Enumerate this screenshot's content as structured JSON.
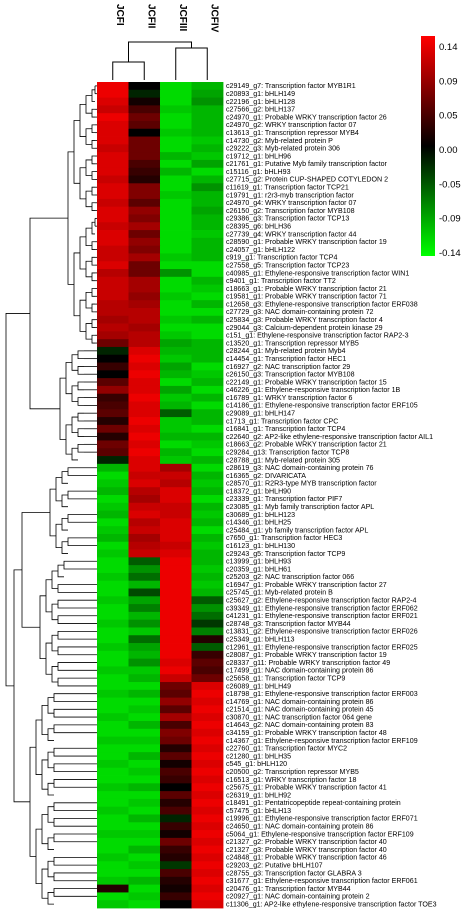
{
  "chart_data": {
    "type": "heatmap",
    "columns": [
      "JCFI",
      "JCFII",
      "JCFIII",
      "JCFIV"
    ],
    "color_scale": {
      "ticks": [
        0.14,
        0.09,
        0.05,
        0.0,
        -0.05,
        -0.09,
        -0.14
      ],
      "tick_labels": [
        "0.14",
        "0.09",
        "0.05",
        "0.00",
        "-0.05",
        "-0.09",
        "-0.14"
      ],
      "min": -0.14,
      "max": 0.14,
      "high_color": "#ff0000",
      "mid_color": "#000000",
      "low_color": "#00ff00"
    },
    "rows": [
      {
        "label": "c29149_g7: Transcription factor MYB1R1",
        "values": [
          0.13,
          0.0,
          -0.12,
          -0.1
        ]
      },
      {
        "label": "c20893_g1: bHLH149",
        "values": [
          0.13,
          -0.02,
          -0.12,
          -0.09
        ]
      },
      {
        "label": "c22196_g1: bHLH128",
        "values": [
          0.12,
          0.01,
          -0.12,
          -0.08
        ]
      },
      {
        "label": "c27566_g2: bHLH137",
        "values": [
          0.11,
          0.04,
          -0.11,
          -0.1
        ]
      },
      {
        "label": "c24970_g1: Probable WRKY transcription factor 26",
        "values": [
          0.13,
          0.06,
          -0.12,
          -0.1
        ]
      },
      {
        "label": "c24970_g2: WRKY transcription factor 07",
        "values": [
          0.12,
          0.05,
          -0.12,
          -0.1
        ]
      },
      {
        "label": "c13613_g1: Transcription repressor MYB4",
        "values": [
          0.12,
          0.0,
          -0.11,
          -0.1
        ]
      },
      {
        "label": "c14730_g2: Myb-related protein P",
        "values": [
          0.12,
          0.06,
          -0.12,
          -0.11
        ]
      },
      {
        "label": "c29222_g3: Myb-related protein 306",
        "values": [
          0.11,
          0.06,
          -0.12,
          -0.1
        ]
      },
      {
        "label": "c19712_g1: bHLH96",
        "values": [
          0.12,
          0.06,
          -0.1,
          -0.11
        ]
      },
      {
        "label": "c21761_g1: Putative Myb family transcription factor",
        "values": [
          0.12,
          0.04,
          -0.12,
          -0.09
        ]
      },
      {
        "label": "c15116_g1: bHLH93",
        "values": [
          0.12,
          0.03,
          -0.1,
          -0.12
        ]
      },
      {
        "label": "c27715_g2: Protein CUP-SHAPED COTYLEDON 2",
        "values": [
          0.11,
          0.02,
          -0.12,
          -0.1
        ]
      },
      {
        "label": "c11619_g1: Transcription factor TCP21",
        "values": [
          0.12,
          0.07,
          -0.12,
          -0.08
        ]
      },
      {
        "label": "c19791_g1: r2r3-myb transcription factor",
        "values": [
          0.12,
          0.07,
          -0.11,
          -0.1
        ]
      },
      {
        "label": "c24970_g4: WRKY transcription factor 07",
        "values": [
          0.11,
          0.05,
          -0.12,
          -0.1
        ]
      },
      {
        "label": "c26150_g2: Transcription factor MYB108",
        "values": [
          0.12,
          0.08,
          -0.12,
          -0.09
        ]
      },
      {
        "label": "c29386_g3: Transcription factor TCP13",
        "values": [
          0.12,
          0.07,
          -0.12,
          -0.1
        ]
      },
      {
        "label": "c28395_g6: bHLH36",
        "values": [
          0.11,
          0.09,
          -0.12,
          -0.1
        ]
      },
      {
        "label": "c27739_g4: WRKY transcription factor 44",
        "values": [
          0.12,
          0.06,
          -0.12,
          -0.11
        ]
      },
      {
        "label": "c28590_g1: Probable WRKY transcription factor 19",
        "values": [
          0.12,
          0.08,
          -0.12,
          -0.1
        ]
      },
      {
        "label": "c24057_g1: bHLH122",
        "values": [
          0.11,
          0.07,
          -0.12,
          -0.1
        ]
      },
      {
        "label": "c919_g1: Transcription factor TCP4",
        "values": [
          0.11,
          0.09,
          -0.11,
          -0.1
        ]
      },
      {
        "label": "c27558_g5: Transcription factor TCP23",
        "values": [
          0.12,
          0.06,
          -0.12,
          -0.12
        ]
      },
      {
        "label": "c40985_g1: Ethylene-responsive transcription factor WIN1",
        "values": [
          0.1,
          0.06,
          -0.08,
          -0.12
        ]
      },
      {
        "label": "c9401_g1: Transcription factor TT2",
        "values": [
          0.11,
          0.09,
          -0.12,
          -0.1
        ]
      },
      {
        "label": "c18663_g1: Probable WRKY transcription factor 21",
        "values": [
          0.11,
          0.09,
          -0.12,
          -0.11
        ]
      },
      {
        "label": "c19581_g1: Probable WRKY transcription factor 71",
        "values": [
          0.11,
          0.08,
          -0.11,
          -0.12
        ]
      },
      {
        "label": "c12658_g3: Ethylene-responsive transcription factor ERF038",
        "values": [
          0.1,
          0.09,
          -0.12,
          -0.1
        ]
      },
      {
        "label": "c27729_g3: NAC domain-containing protein 72",
        "values": [
          0.1,
          0.1,
          -0.12,
          -0.12
        ]
      },
      {
        "label": "c25834_g3: Probable WRKY transcription factor 4",
        "values": [
          0.09,
          0.1,
          -0.11,
          -0.1
        ]
      },
      {
        "label": "c29044_g3: Calcium-dependent protein kinase 29",
        "values": [
          0.1,
          0.09,
          -0.12,
          -0.12
        ]
      },
      {
        "label": "c151_g1: Ethylene-responsive transcription factor RAP2-3",
        "values": [
          0.09,
          0.1,
          -0.11,
          -0.12
        ]
      },
      {
        "label": "c13520_g1: Transcription repressor MYB5",
        "values": [
          0.06,
          0.1,
          -0.09,
          -0.1
        ]
      },
      {
        "label": "c28244_g1: Myb-related protein Myb4",
        "values": [
          -0.02,
          0.12,
          -0.1,
          -0.1
        ]
      },
      {
        "label": "c14454_g1: Transcription factor HEC1",
        "values": [
          0.0,
          0.13,
          -0.11,
          -0.1
        ]
      },
      {
        "label": "c16927_g2: NAC transcription factor 29",
        "values": [
          0.03,
          0.12,
          -0.09,
          -0.12
        ]
      },
      {
        "label": "c26150_g3: Transcription factor MYB108",
        "values": [
          0.0,
          0.13,
          -0.1,
          -0.11
        ]
      },
      {
        "label": "c22149_g1: Probable WRKY transcription factor 15",
        "values": [
          0.05,
          0.12,
          -0.12,
          -0.1
        ]
      },
      {
        "label": "c46226_g1: Ethylene-responsive transcription factor 1B",
        "values": [
          0.08,
          0.12,
          -0.09,
          -0.12
        ]
      },
      {
        "label": "c16789_g1: WRKY transcription factor 6",
        "values": [
          0.03,
          0.13,
          -0.11,
          -0.1
        ]
      },
      {
        "label": "c14186_g1: Ethylene-responsive transcription factor ERF105",
        "values": [
          0.04,
          0.12,
          -0.1,
          -0.12
        ]
      },
      {
        "label": "c29089_g1: bHLH147",
        "values": [
          0.05,
          0.12,
          -0.05,
          -0.1
        ]
      },
      {
        "label": "c1713_g1: Transcription factor CPC",
        "values": [
          0.02,
          0.13,
          -0.11,
          -0.1
        ]
      },
      {
        "label": "c16841_g1: Transcription factor TCP4",
        "values": [
          0.06,
          0.12,
          -0.11,
          -0.12
        ]
      },
      {
        "label": "c22640_g2: AP2-like ethylene-responsive transcription factor AIL1",
        "values": [
          0.02,
          0.13,
          -0.1,
          -0.1
        ]
      },
      {
        "label": "c18663_g2: Probable WRKY transcription factor 21",
        "values": [
          0.06,
          0.12,
          -0.12,
          -0.11
        ]
      },
      {
        "label": "c29284_g13: Transcription factor TCP8",
        "values": [
          0.05,
          0.13,
          -0.1,
          -0.12
        ]
      },
      {
        "label": "c28788_g1: Myb-related protein 305",
        "values": [
          -0.02,
          0.12,
          -0.11,
          -0.1
        ]
      },
      {
        "label": "c28619_g3: NAC domain-containing protein 76",
        "values": [
          -0.1,
          0.12,
          0.09,
          -0.12
        ]
      },
      {
        "label": "c16365_g2: DIVARICATA",
        "values": [
          -0.12,
          0.11,
          0.11,
          -0.1
        ]
      },
      {
        "label": "c28570_g1: R2R3-type MYB transcription factor",
        "values": [
          -0.11,
          0.12,
          0.1,
          -0.11
        ]
      },
      {
        "label": "c18372_g1: bHLH90",
        "values": [
          -0.1,
          0.1,
          0.12,
          -0.1
        ]
      },
      {
        "label": "c23339_g1: Transcription factor PIF7",
        "values": [
          -0.12,
          0.09,
          0.12,
          -0.12
        ]
      },
      {
        "label": "c23085_g1: Myb family transcription factor APL",
        "values": [
          -0.11,
          0.11,
          0.11,
          -0.1
        ]
      },
      {
        "label": "c30689_g1: bHLH123",
        "values": [
          -0.1,
          0.12,
          0.11,
          -0.11
        ]
      },
      {
        "label": "c14346_g1: bHLH25",
        "values": [
          -0.12,
          0.1,
          0.12,
          -0.1
        ]
      },
      {
        "label": "c25484_g1: yb family transcription factor APL",
        "values": [
          -0.11,
          0.11,
          0.12,
          -0.12
        ]
      },
      {
        "label": "c7650_g1: Transcription factor HEC3",
        "values": [
          -0.1,
          0.09,
          0.12,
          -0.1
        ]
      },
      {
        "label": "c16123_g1: bHLH130",
        "values": [
          -0.12,
          0.1,
          0.11,
          -0.11
        ]
      },
      {
        "label": "c29243_g5: Transcription factor TCP9",
        "values": [
          -0.11,
          0.11,
          0.12,
          -0.1
        ]
      },
      {
        "label": "c13999_g1: bHLH93",
        "values": [
          -0.12,
          -0.05,
          0.13,
          -0.1
        ]
      },
      {
        "label": "c20359_g1: bHLH61",
        "values": [
          -0.12,
          -0.08,
          0.13,
          -0.11
        ]
      },
      {
        "label": "c25203_g2: NAC transcription factor 066",
        "values": [
          -0.11,
          -0.06,
          0.13,
          -0.1
        ]
      },
      {
        "label": "c16947_g1: Probable WRKY transcription factor 27",
        "values": [
          -0.12,
          -0.1,
          0.13,
          -0.11
        ]
      },
      {
        "label": "c25745_g1: Myb-related protein B",
        "values": [
          -0.12,
          -0.04,
          0.13,
          -0.1
        ]
      },
      {
        "label": "c25627_g2: Ethylene-responsive transcription factor RAP2-4",
        "values": [
          -0.11,
          -0.09,
          0.13,
          -0.05
        ]
      },
      {
        "label": "c39349_g1: Ethylene-responsive transcription factor ERF062",
        "values": [
          -0.12,
          -0.07,
          0.13,
          -0.08
        ]
      },
      {
        "label": "c41231_g1: Ethylene-responsive transcription factor ERF021",
        "values": [
          -0.12,
          -0.1,
          0.13,
          -0.06
        ]
      },
      {
        "label": "c28748_g3: Transcription factor MYB44",
        "values": [
          -0.11,
          -0.08,
          0.13,
          -0.03
        ]
      },
      {
        "label": "c13831_g2: Ethylene-responsive transcription factor ERF026",
        "values": [
          -0.12,
          -0.11,
          0.13,
          -0.07
        ]
      },
      {
        "label": "c25349_g1: bHLH113",
        "values": [
          -0.12,
          -0.06,
          0.13,
          0.02
        ]
      },
      {
        "label": "c12961_g1: Ethylene-responsive transcription factor ERF025",
        "values": [
          -0.11,
          -0.09,
          0.13,
          -0.05
        ]
      },
      {
        "label": "c28087_g1: Probable WRKY transcription factor 19",
        "values": [
          -0.12,
          -0.1,
          0.13,
          0.03
        ]
      },
      {
        "label": "c28337_g11: Probable WRKY transcription factor 49",
        "values": [
          -0.12,
          -0.08,
          0.12,
          0.05
        ]
      },
      {
        "label": "c17499_g1: NAC domain-containing protein 86",
        "values": [
          -0.11,
          -0.11,
          0.13,
          0.04
        ]
      },
      {
        "label": "c25658_g1: Transcription factor TCP9",
        "values": [
          -0.12,
          -0.1,
          0.11,
          0.06
        ]
      },
      {
        "label": "c26089_g1: bHLH49",
        "values": [
          -0.12,
          -0.12,
          0.06,
          0.12
        ]
      },
      {
        "label": "c18798_g1: Ethylene-responsive transcription factor ERF003",
        "values": [
          -0.11,
          -0.1,
          0.05,
          0.13
        ]
      },
      {
        "label": "c14769_g1: NAC domain-containing protein 86",
        "values": [
          -0.12,
          -0.12,
          0.08,
          0.12
        ]
      },
      {
        "label": "c21514_g1: NAC domain-containing protein 45",
        "values": [
          -0.12,
          -0.11,
          0.05,
          0.13
        ]
      },
      {
        "label": "c30870_g1: NAC transcription factor 064 gene",
        "values": [
          -0.11,
          -0.12,
          0.09,
          0.12
        ]
      },
      {
        "label": "c14643_g2: NAC domain-containing protein 83",
        "values": [
          -0.12,
          -0.1,
          0.04,
          0.13
        ]
      },
      {
        "label": "c34159_g1: Probable WRKY transcription factor 48",
        "values": [
          -0.12,
          -0.12,
          0.07,
          0.12
        ]
      },
      {
        "label": "c14367_g1: Ethylene-responsive transcription factor ERF109",
        "values": [
          -0.11,
          -0.11,
          0.06,
          0.13
        ]
      },
      {
        "label": "c22760_g1: Transcription factor MYC2",
        "values": [
          -0.12,
          -0.12,
          0.02,
          0.12
        ]
      },
      {
        "label": "c21280_g1: bHLH35",
        "values": [
          -0.12,
          -0.1,
          0.05,
          0.13
        ]
      },
      {
        "label": "c545_g1: bHLH120",
        "values": [
          -0.11,
          -0.12,
          0.01,
          0.12
        ]
      },
      {
        "label": "c20500_g2: Transcription repressor MYB5",
        "values": [
          -0.12,
          -0.11,
          0.04,
          0.13
        ]
      },
      {
        "label": "c16513_g1: WRKY transcription factor 18",
        "values": [
          -0.12,
          -0.12,
          0.03,
          0.12
        ]
      },
      {
        "label": "c25675_g1: Probable WRKY transcription factor 41",
        "values": [
          -0.11,
          -0.1,
          0.0,
          0.13
        ]
      },
      {
        "label": "c26319_g1: bHLH92",
        "values": [
          -0.12,
          -0.12,
          0.05,
          0.12
        ]
      },
      {
        "label": "c18491_g1: Pentatricopeptide repeat-containing protein",
        "values": [
          -0.12,
          -0.11,
          0.02,
          0.13
        ]
      },
      {
        "label": "c57475_g1: bHLH13",
        "values": [
          -0.11,
          -0.12,
          0.04,
          0.12
        ]
      },
      {
        "label": "c19996_g1: Ethylene-responsive transcription factor ERF071",
        "values": [
          -0.12,
          -0.1,
          -0.02,
          0.13
        ]
      },
      {
        "label": "c24650_g1: NAC domain-containing protein 86",
        "values": [
          -0.12,
          -0.12,
          0.03,
          0.12
        ]
      },
      {
        "label": "c5064_g1: Ethylene-responsive transcription factor ERF109",
        "values": [
          -0.11,
          -0.11,
          0.01,
          0.13
        ]
      },
      {
        "label": "c21327_g2: Probable WRKY transcription factor 40",
        "values": [
          -0.12,
          -0.12,
          0.06,
          0.12
        ]
      },
      {
        "label": "c21327_g3: Probable WRKY transcription factor 40",
        "values": [
          -0.12,
          -0.1,
          0.03,
          0.13
        ]
      },
      {
        "label": "c24848_g1: Probable WRKY transcription factor 46",
        "values": [
          -0.11,
          -0.12,
          0.02,
          0.12
        ]
      },
      {
        "label": "c29203_g2: Putative bHLH107",
        "values": [
          -0.12,
          -0.11,
          -0.03,
          0.13
        ]
      },
      {
        "label": "c28755_g3: Transcription factor GLABRA 3",
        "values": [
          -0.12,
          -0.12,
          0.04,
          0.12
        ]
      },
      {
        "label": "c31677_g1: Ethylene-responsive transcription factor ERF061",
        "values": [
          -0.11,
          -0.1,
          0.02,
          0.13
        ]
      },
      {
        "label": "c20476_g1: Transcription factor MYB44",
        "values": [
          0.02,
          -0.12,
          0.01,
          0.12
        ]
      },
      {
        "label": "c20927_g1: NAC domain-containing protein 2",
        "values": [
          -0.12,
          -0.11,
          0.03,
          0.13
        ]
      },
      {
        "label": "c11306_g1: AP2-like ethylene-responsive transcription factor TOE3",
        "values": [
          -0.11,
          -0.12,
          0.0,
          0.12
        ]
      }
    ]
  }
}
